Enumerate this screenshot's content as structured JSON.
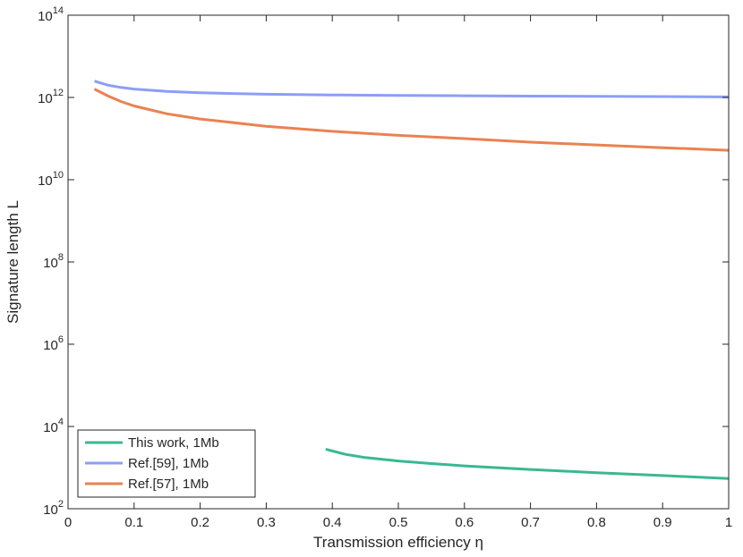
{
  "chart_data": {
    "type": "line",
    "xlabel": "Transmission efficiency η",
    "ylabel": "Signature length L",
    "xlim": [
      0,
      1
    ],
    "ylim": [
      100,
      100000000000000
    ],
    "yscale": "log",
    "xticks": [
      "0",
      "0.1",
      "0.2",
      "0.3",
      "0.4",
      "0.5",
      "0.6",
      "0.7",
      "0.8",
      "0.9",
      "1"
    ],
    "yticks": [
      {
        "base": "10",
        "exp": "2"
      },
      {
        "base": "10",
        "exp": "4"
      },
      {
        "base": "10",
        "exp": "6"
      },
      {
        "base": "10",
        "exp": "8"
      },
      {
        "base": "10",
        "exp": "10"
      },
      {
        "base": "10",
        "exp": "12"
      },
      {
        "base": "10",
        "exp": "14"
      }
    ],
    "grid": false,
    "legend_position": "bottom-left",
    "series": [
      {
        "name": "This work, 1Mb",
        "color": "#3ab891",
        "x": [
          0.39,
          0.42,
          0.45,
          0.5,
          0.55,
          0.6,
          0.7,
          0.8,
          0.9,
          1.0
        ],
        "y": [
          2800,
          2100,
          1750,
          1450,
          1250,
          1100,
          900,
          750,
          640,
          540
        ]
      },
      {
        "name": "Ref.[59], 1Mb",
        "color": "#8c9ef5",
        "x": [
          0.04,
          0.06,
          0.08,
          0.1,
          0.15,
          0.2,
          0.3,
          0.4,
          0.5,
          0.6,
          0.7,
          0.8,
          0.9,
          1.0
        ],
        "y": [
          2500000000000,
          2000000000000,
          1750000000000,
          1600000000000,
          1400000000000,
          1300000000000,
          1200000000000,
          1150000000000,
          1120000000000,
          1100000000000,
          1080000000000,
          1060000000000,
          1050000000000,
          1030000000000
        ]
      },
      {
        "name": "Ref.[57], 1Mb",
        "color": "#ea8251",
        "x": [
          0.04,
          0.06,
          0.08,
          0.1,
          0.15,
          0.2,
          0.3,
          0.4,
          0.5,
          0.6,
          0.7,
          0.8,
          0.9,
          1.0
        ],
        "y": [
          1600000000000,
          1100000000000,
          800000000000,
          620000000000,
          400000000000,
          300000000000,
          200000000000,
          150000000000,
          120000000000,
          100000000000,
          82000000000,
          70000000000,
          60000000000,
          52000000000
        ]
      }
    ]
  }
}
